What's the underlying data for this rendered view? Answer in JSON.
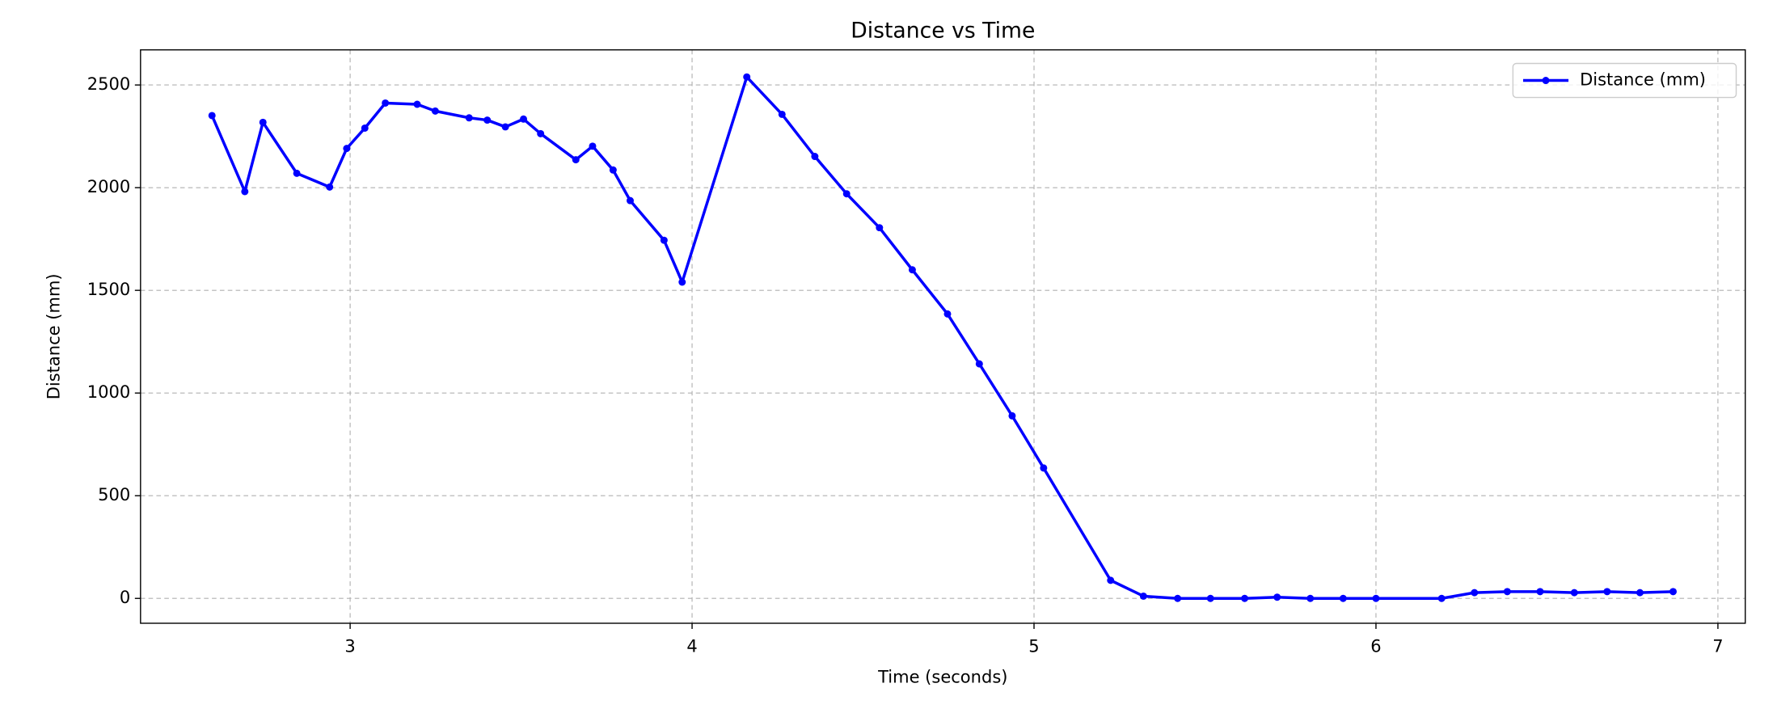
{
  "chart_data": {
    "type": "line",
    "title": "Distance vs Time",
    "x_label": "Time (seconds)",
    "y_label": "Distance (mm)",
    "x": [
      2.596,
      2.692,
      2.745,
      2.844,
      2.94,
      2.99,
      3.043,
      3.103,
      3.196,
      3.249,
      3.348,
      3.401,
      3.454,
      3.507,
      3.557,
      3.66,
      3.709,
      3.769,
      3.819,
      3.918,
      3.971,
      4.16,
      4.263,
      4.359,
      4.452,
      4.548,
      4.644,
      4.747,
      4.84,
      4.936,
      5.028,
      5.224,
      5.32,
      5.42,
      5.516,
      5.616,
      5.711,
      5.808,
      5.904,
      6.0,
      6.192,
      6.288,
      6.384,
      6.48,
      6.58,
      6.676,
      6.772,
      6.869
    ],
    "series": [
      {
        "name": "Distance (mm)",
        "color": "#0000ff",
        "values": [
          2351,
          1981,
          2318,
          2070,
          2003,
          2191,
          2290,
          2412,
          2406,
          2373,
          2340,
          2329,
          2296,
          2334,
          2263,
          2136,
          2202,
          2086,
          1937,
          1744,
          1540,
          2539,
          2357,
          2152,
          1970,
          1805,
          1600,
          1385,
          1142,
          889,
          635,
          88,
          11,
          0,
          0,
          0,
          6,
          0,
          0,
          0,
          0,
          28,
          33,
          33,
          28,
          33,
          28,
          33
        ]
      }
    ],
    "xlim": [
      2.387,
      7.08
    ],
    "ylim": [
      -121,
      2671
    ],
    "xticks": [
      3,
      4,
      5,
      6,
      7
    ],
    "yticks": [
      0,
      500,
      1000,
      1500,
      2000,
      2500
    ],
    "grid": true,
    "legend": "upper right"
  }
}
